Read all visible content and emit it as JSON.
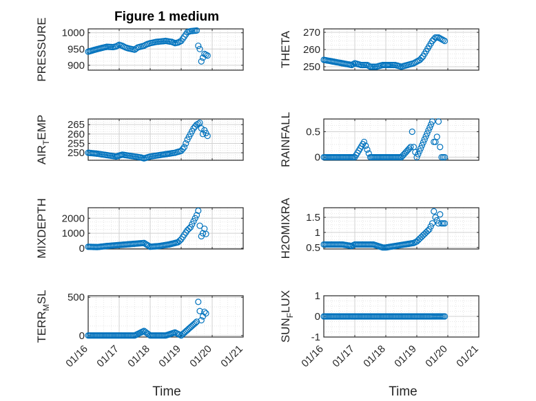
{
  "figure": {
    "title": "Figure 1 medium",
    "xlabel": "Time",
    "x_tick_labels": [
      "01/16",
      "01/17",
      "01/18",
      "01/19",
      "01/20",
      "01/21"
    ]
  },
  "chart_data": [
    {
      "type": "scatter",
      "ylabel": "PRESSURE",
      "xlim": [
        16,
        21
      ],
      "ylim": [
        885,
        1012
      ],
      "y_ticks": [
        900,
        950,
        1000
      ],
      "y_tick_labels": [
        "900",
        "950",
        "1000"
      ],
      "x": [
        16.0,
        16.3,
        16.6,
        16.8,
        16.9,
        17.0,
        17.1,
        17.2,
        17.3,
        17.5,
        17.6,
        17.8,
        17.9,
        18.0,
        18.2,
        18.3,
        18.5,
        18.7,
        18.8,
        18.9,
        19.0,
        19.1,
        19.2,
        19.3,
        19.5,
        19.55,
        19.6,
        19.65,
        19.75,
        19.85
      ],
      "y": [
        942,
        950,
        957,
        956,
        958,
        963,
        960,
        955,
        952,
        948,
        955,
        960,
        965,
        968,
        972,
        973,
        975,
        972,
        968,
        970,
        975,
        988,
        1002,
        1005,
        1007,
        960,
        950,
        912,
        935,
        930
      ],
      "series": [
        {
          "name": "",
          "color": "#0072BD"
        }
      ],
      "grid": "on"
    },
    {
      "type": "scatter",
      "ylabel": "THETA",
      "xlim": [
        16,
        21
      ],
      "ylim": [
        248,
        272
      ],
      "y_ticks": [
        250,
        260,
        270
      ],
      "y_tick_labels": [
        "250",
        "260",
        "270"
      ],
      "x": [
        16.0,
        16.3,
        16.6,
        16.9,
        17.0,
        17.2,
        17.4,
        17.5,
        17.7,
        17.9,
        18.1,
        18.3,
        18.5,
        18.7,
        18.9,
        19.0,
        19.1,
        19.2,
        19.3,
        19.4,
        19.5,
        19.6,
        19.7,
        19.8,
        19.9
      ],
      "y": [
        254,
        253,
        252,
        251,
        252,
        251,
        251,
        250,
        250,
        251,
        251,
        251,
        250,
        251,
        252,
        253,
        254,
        256,
        259,
        262,
        265,
        267,
        267,
        266,
        265
      ],
      "series": [
        {
          "name": "",
          "color": "#0072BD"
        }
      ],
      "grid": "on"
    },
    {
      "type": "scatter",
      "ylabel": "AIR_TEMP",
      "xlim": [
        16,
        21
      ],
      "ylim": [
        246,
        268
      ],
      "y_ticks": [
        250,
        255,
        260,
        265
      ],
      "y_tick_labels": [
        "250",
        "255",
        "260",
        "265"
      ],
      "x": [
        16.0,
        16.3,
        16.5,
        16.7,
        16.9,
        17.1,
        17.3,
        17.5,
        17.7,
        17.8,
        18.0,
        18.2,
        18.4,
        18.6,
        18.8,
        19.0,
        19.1,
        19.2,
        19.3,
        19.4,
        19.5,
        19.6,
        19.7,
        19.75,
        19.85
      ],
      "y": [
        250,
        249.5,
        249,
        248.5,
        248,
        249,
        248.5,
        248,
        247.5,
        247,
        248,
        248.5,
        249,
        249.5,
        250,
        251,
        253,
        257,
        260,
        263,
        265,
        266,
        260,
        262,
        259
      ],
      "series": [
        {
          "name": "",
          "color": "#0072BD"
        }
      ],
      "grid": "on"
    },
    {
      "type": "scatter",
      "ylabel": "RAINFALL",
      "xlim": [
        16,
        21
      ],
      "ylim": [
        -0.06,
        0.75
      ],
      "y_ticks": [
        0,
        0.5
      ],
      "y_tick_labels": [
        "0",
        "0.5"
      ],
      "x": [
        16.0,
        16.5,
        17.0,
        17.3,
        17.5,
        18.0,
        18.5,
        18.8,
        18.85,
        18.9,
        18.95,
        19.0,
        19.5,
        19.55,
        19.6,
        19.65,
        19.7,
        19.75,
        19.8,
        19.9
      ],
      "y": [
        0,
        0,
        0,
        0.3,
        0,
        0,
        0,
        0.2,
        0.5,
        0.2,
        0.1,
        0,
        0.7,
        0.3,
        0.3,
        0.4,
        0.7,
        0.2,
        0,
        0
      ],
      "series": [
        {
          "name": "",
          "color": "#0072BD"
        }
      ],
      "grid": "on"
    },
    {
      "type": "scatter",
      "ylabel": "MIXDEPTH",
      "xlim": [
        16,
        21
      ],
      "ylim": [
        -50,
        2700
      ],
      "y_ticks": [
        0,
        1000,
        2000
      ],
      "y_tick_labels": [
        "0",
        "1000",
        "2000"
      ],
      "x": [
        16.0,
        16.3,
        16.6,
        16.9,
        17.2,
        17.5,
        17.8,
        18.0,
        18.3,
        18.6,
        18.9,
        19.0,
        19.2,
        19.3,
        19.4,
        19.5,
        19.55,
        19.6,
        19.65,
        19.7,
        19.75,
        19.8
      ],
      "y": [
        100,
        80,
        150,
        200,
        250,
        300,
        350,
        100,
        150,
        250,
        400,
        600,
        1200,
        1400,
        1800,
        2200,
        2500,
        1500,
        800,
        1000,
        1300,
        950
      ],
      "series": [
        {
          "name": "",
          "color": "#0072BD"
        }
      ],
      "grid": "on"
    },
    {
      "type": "scatter",
      "ylabel": "H2OMIXRA",
      "xlim": [
        16,
        21
      ],
      "ylim": [
        0.45,
        1.82
      ],
      "y_ticks": [
        0.5,
        1,
        1.5
      ],
      "y_tick_labels": [
        "0.5",
        "1",
        "1.5"
      ],
      "x": [
        16.0,
        16.3,
        16.6,
        16.9,
        17.0,
        17.3,
        17.6,
        17.9,
        18.0,
        18.3,
        18.6,
        18.9,
        19.0,
        19.2,
        19.3,
        19.4,
        19.5,
        19.55,
        19.6,
        19.7,
        19.75,
        19.8,
        19.9
      ],
      "y": [
        0.6,
        0.6,
        0.6,
        0.55,
        0.6,
        0.6,
        0.6,
        0.5,
        0.5,
        0.55,
        0.6,
        0.65,
        0.7,
        0.9,
        1.0,
        1.1,
        1.3,
        1.7,
        1.5,
        1.3,
        1.6,
        1.3,
        1.3
      ],
      "series": [
        {
          "name": "",
          "color": "#0072BD"
        }
      ],
      "grid": "on"
    },
    {
      "type": "scatter",
      "ylabel": "TERR_MSL",
      "xlim": [
        16,
        21
      ],
      "ylim": [
        -20,
        520
      ],
      "y_ticks": [
        0,
        500
      ],
      "y_tick_labels": [
        "0",
        "500"
      ],
      "x": [
        16.0,
        16.5,
        17.0,
        17.5,
        17.8,
        18.0,
        18.5,
        18.8,
        19.0,
        19.5,
        19.55,
        19.6,
        19.65,
        19.7,
        19.75,
        19.8
      ],
      "y": [
        0,
        0,
        0,
        0,
        60,
        0,
        0,
        40,
        0,
        180,
        440,
        320,
        200,
        250,
        310,
        290
      ],
      "series": [
        {
          "name": "",
          "color": "#0072BD"
        }
      ],
      "grid": "on"
    },
    {
      "type": "scatter",
      "ylabel": "SUN_FLUX",
      "xlim": [
        16,
        21
      ],
      "ylim": [
        -1,
        1
      ],
      "y_ticks": [
        -1,
        0,
        1
      ],
      "y_tick_labels": [
        "-1",
        "0",
        "1"
      ],
      "x": [
        16.0,
        16.5,
        17.0,
        17.5,
        18.0,
        18.5,
        19.0,
        19.5,
        19.9
      ],
      "y": [
        0,
        0,
        0,
        0,
        0,
        0,
        0,
        0,
        0
      ],
      "series": [
        {
          "name": "",
          "color": "#0072BD"
        }
      ],
      "grid": "on"
    }
  ]
}
